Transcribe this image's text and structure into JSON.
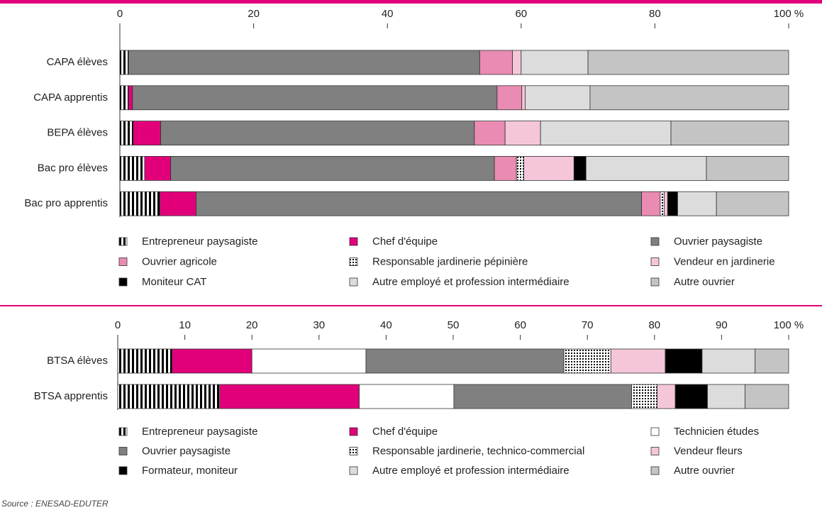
{
  "chart_data": [
    {
      "type": "stacked-barh",
      "categories": [
        "CAPA élèves",
        "CAPA apprentis",
        "BEPA élèves",
        "Bac pro élèves",
        "Bac pro apprentis"
      ],
      "xlim": [
        0,
        100
      ],
      "xticks": [
        0,
        20,
        40,
        60,
        80,
        {
          "value": 100,
          "label": "100 %"
        }
      ],
      "series": [
        {
          "name": "Entrepreneur paysagiste",
          "color": "#000000",
          "pattern": "stripes",
          "values": [
            1.3,
            1.3,
            2.0,
            3.7,
            6.0
          ]
        },
        {
          "name": "Chef d'équipe",
          "color": "#e2007a",
          "values": [
            0,
            0.6,
            4.1,
            3.9,
            5.4
          ]
        },
        {
          "name": "Ouvrier paysagiste",
          "color": "#808080",
          "values": [
            52.5,
            54.5,
            46.9,
            48.4,
            66.6
          ]
        },
        {
          "name": "Ouvrier agricole",
          "color": "#e98bb2",
          "values": [
            4.9,
            3.7,
            4.6,
            3.3,
            2.8
          ]
        },
        {
          "name": "Responsable jardinerie pépinière",
          "color": "#000000",
          "pattern": "dots",
          "values": [
            0,
            0,
            0,
            1.1,
            0.6
          ]
        },
        {
          "name": "Vendeur en jardinerie",
          "color": "#f5c6da",
          "values": [
            1.3,
            0.5,
            5.3,
            7.5,
            0.5
          ]
        },
        {
          "name": "Moniteur CAT",
          "color": "#000000",
          "values": [
            0,
            0,
            0,
            1.8,
            1.5
          ]
        },
        {
          "name": "Autre employé et profession intermédiaire",
          "color": "#dcdcdc",
          "values": [
            10.0,
            9.7,
            19.5,
            18.0,
            5.8
          ]
        },
        {
          "name": "Autre ouvrier",
          "color": "#c4c4c4",
          "values": [
            30.0,
            29.7,
            17.6,
            12.3,
            10.8
          ]
        }
      ]
    },
    {
      "type": "stacked-barh",
      "categories": [
        "BTSA élèves",
        "BTSA apprentis"
      ],
      "xlim": [
        0,
        100
      ],
      "xticks": [
        0,
        10,
        20,
        30,
        40,
        50,
        60,
        70,
        80,
        90,
        {
          "value": 100,
          "label": "100 %"
        }
      ],
      "series": [
        {
          "name": "Entrepreneur paysagiste",
          "color": "#000000",
          "pattern": "stripes",
          "values": [
            8.1,
            15.2
          ]
        },
        {
          "name": "Chef d'équipe",
          "color": "#e2007a",
          "values": [
            11.9,
            20.8
          ]
        },
        {
          "name": "Technicien études",
          "color": "#ffffff",
          "values": [
            17.0,
            14.1
          ]
        },
        {
          "name": "Ouvrier paysagiste",
          "color": "#808080",
          "values": [
            29.5,
            26.5
          ]
        },
        {
          "name": "Responsable jardinerie, technico-commercial",
          "color": "#000000",
          "pattern": "dots",
          "values": [
            7.0,
            3.8
          ]
        },
        {
          "name": "Vendeur fleurs",
          "color": "#f5c6da",
          "values": [
            8.1,
            2.7
          ]
        },
        {
          "name": "Formateur, moniteur",
          "color": "#000000",
          "values": [
            5.5,
            4.8
          ]
        },
        {
          "name": "Autre employé et profession intermédiaire",
          "color": "#dcdcdc",
          "values": [
            7.9,
            5.6
          ]
        },
        {
          "name": "Autre ouvrier",
          "color": "#c4c4c4",
          "values": [
            5.0,
            6.5
          ]
        }
      ]
    }
  ],
  "source": "Source : ENESAD-EDUTER"
}
